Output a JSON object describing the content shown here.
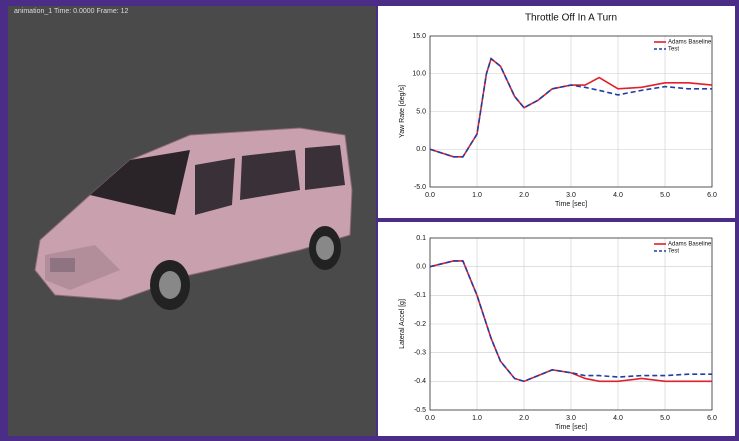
{
  "header": {
    "viewport_info": "animation_1   Time: 0.0000   Frame: 12"
  },
  "chart_data": [
    {
      "type": "line",
      "title": "Throttle Off In A Turn",
      "x_label": "Time [sec]",
      "y_label": "Yaw Rate [deg/s]",
      "x": [
        0,
        0.5,
        0.7,
        1.0,
        1.2,
        1.3,
        1.5,
        1.8,
        2.0,
        2.3,
        2.6,
        3.0,
        3.3,
        3.6,
        4.0,
        4.5,
        5.0,
        5.5,
        6.0
      ],
      "series": [
        {
          "name": "Adams Baseline",
          "color": "#e0202a",
          "dashed": false,
          "values": [
            0,
            -1,
            -1,
            2,
            10,
            12,
            11,
            7,
            5.5,
            6.5,
            8,
            8.5,
            8.5,
            9.5,
            8,
            8.2,
            8.8,
            8.8,
            8.5
          ]
        },
        {
          "name": "Test",
          "color": "#1f3fa8",
          "dashed": true,
          "values": [
            0,
            -1,
            -1,
            2,
            10,
            12,
            11,
            7,
            5.5,
            6.5,
            8,
            8.5,
            8.2,
            7.8,
            7.2,
            7.8,
            8.3,
            8,
            8
          ]
        }
      ],
      "xlim": [
        0,
        6
      ],
      "xticks": [
        {
          "value": 0,
          "label": "0.0"
        },
        {
          "value": 1,
          "label": "1.0"
        },
        {
          "value": 2,
          "label": "2.0"
        },
        {
          "value": 3,
          "label": "3.0"
        },
        {
          "value": 4,
          "label": "4.0"
        },
        {
          "value": 5,
          "label": "5.0"
        },
        {
          "value": 6,
          "label": "6.0"
        }
      ],
      "ylim": [
        -5,
        15
      ],
      "yticks": [
        {
          "value": -5,
          "label": "-5.0"
        },
        {
          "value": 0,
          "label": "0.0"
        },
        {
          "value": 5,
          "label": "5.0"
        },
        {
          "value": 10,
          "label": "10.0"
        },
        {
          "value": 15,
          "label": "15.0"
        }
      ],
      "grid": true,
      "legend": "top-right"
    },
    {
      "type": "line",
      "x_label": "Time [sec]",
      "y_label": "Lateral Accel [g]",
      "x": [
        0,
        0.5,
        0.7,
        1.0,
        1.2,
        1.3,
        1.5,
        1.8,
        2.0,
        2.3,
        2.6,
        3.0,
        3.3,
        3.6,
        4.0,
        4.5,
        5.0,
        5.5,
        6.0
      ],
      "series": [
        {
          "name": "Adams Baseline",
          "color": "#e0202a",
          "dashed": false,
          "values": [
            0,
            0.02,
            0.02,
            -0.1,
            -0.2,
            -0.25,
            -0.33,
            -0.39,
            -0.4,
            -0.38,
            -0.36,
            -0.37,
            -0.39,
            -0.4,
            -0.4,
            -0.39,
            -0.4,
            -0.4,
            -0.4
          ]
        },
        {
          "name": "Test",
          "color": "#1f3fa8",
          "dashed": true,
          "values": [
            0,
            0.02,
            0.02,
            -0.1,
            -0.2,
            -0.25,
            -0.33,
            -0.39,
            -0.4,
            -0.38,
            -0.36,
            -0.37,
            -0.38,
            -0.38,
            -0.385,
            -0.38,
            -0.38,
            -0.375,
            -0.375
          ]
        }
      ],
      "xlim": [
        0,
        6
      ],
      "xticks": [
        {
          "value": 0,
          "label": "0.0"
        },
        {
          "value": 1,
          "label": "1.0"
        },
        {
          "value": 2,
          "label": "2.0"
        },
        {
          "value": 3,
          "label": "3.0"
        },
        {
          "value": 4,
          "label": "4.0"
        },
        {
          "value": 5,
          "label": "5.0"
        },
        {
          "value": 6,
          "label": "6.0"
        }
      ],
      "ylim": [
        -0.5,
        0.1
      ],
      "yticks": [
        -0.5,
        -0.4,
        -0.3,
        -0.2,
        -0.1,
        {
          "value": 0,
          "label": "0.0"
        },
        0.1
      ],
      "grid": true,
      "legend": "top-right"
    }
  ]
}
